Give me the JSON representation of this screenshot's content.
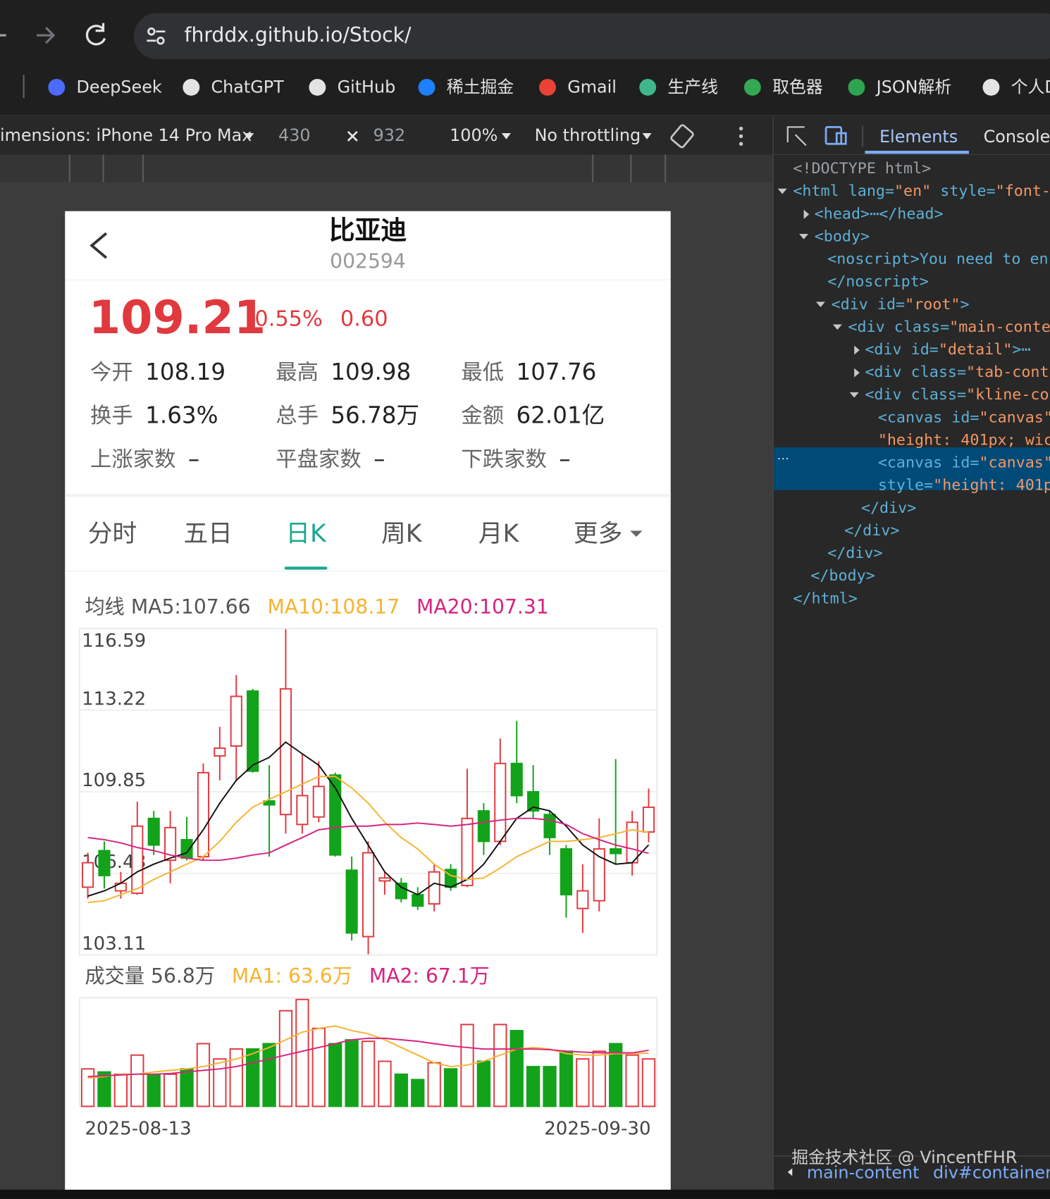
{
  "browser": {
    "url": "fhrddx.github.io/Stock/",
    "bookmarks": [
      "DeepSeek",
      "ChatGPT",
      "GitHub",
      "稀土掘金",
      "Gmail",
      "生产线",
      "取色器",
      "JSON解析",
      "个人D"
    ]
  },
  "device_toolbar": {
    "device": "imensions: iPhone 14 Pro Max",
    "width": 430,
    "height": 932,
    "zoom": "100%",
    "throttling": "No throttling"
  },
  "devtools": {
    "tabs": [
      "Elements",
      "Console"
    ],
    "dom": [
      "<!DOCTYPE html>",
      "<html lang=\"en\" style=\"font-",
      "<head>⋯</head>",
      "<body>",
      "<noscript>You need to en",
      "</noscript>",
      "<div id=\"root\">",
      "<div class=\"main-conte",
      "<div id=\"detail\">⋯",
      "<div class=\"tab-cont",
      "<div class=\"kline-co",
      "<canvas id=\"canvas\"",
      "\"height: 401px; wic",
      "<canvas id=\"canvas\"",
      "style=\"height: 401p",
      "</div>",
      "</div>",
      "</div>",
      "</body>",
      "</html>"
    ],
    "watermark": "掘金技术社区 @ VincentFHR",
    "breadcrumbs": [
      "main-content",
      "div#container.l"
    ]
  },
  "stock": {
    "name": "比亚迪",
    "code": "002594",
    "price": "109.21",
    "change_pct": "0.55%",
    "change": "0.60",
    "stats": [
      {
        "label": "今开",
        "value": "108.19"
      },
      {
        "label": "最高",
        "value": "109.98"
      },
      {
        "label": "最低",
        "value": "107.76"
      },
      {
        "label": "换手",
        "value": "1.63%"
      },
      {
        "label": "总手",
        "value": "56.78万"
      },
      {
        "label": "金额",
        "value": "62.01亿"
      },
      {
        "label": "上涨家数",
        "value": "–"
      },
      {
        "label": "平盘家数",
        "value": "–"
      },
      {
        "label": "下跌家数",
        "value": "–"
      }
    ],
    "tabs": [
      "分时",
      "五日",
      "日K",
      "周K",
      "月K",
      "更多"
    ],
    "active_tab": 2
  },
  "chart_data": [
    {
      "type": "candlestick",
      "categories": [
        "2025-08-13",
        null,
        null,
        null,
        null,
        null,
        null,
        null,
        null,
        null,
        null,
        null,
        null,
        null,
        null,
        null,
        null,
        null,
        null,
        null,
        null,
        null,
        null,
        null,
        null,
        null,
        null,
        null,
        null,
        null,
        null,
        null,
        null,
        null,
        "2025-09-30"
      ],
      "up_color": "#e0393e",
      "down_color": "#12a31b",
      "series": {
        "open": [
          105.91,
          107.42,
          105.76,
          105.66,
          108.75,
          107.02,
          107.87,
          107.17,
          111.33,
          111.74,
          114.01,
          109.47,
          108.91,
          108.5,
          108.81,
          110.54,
          106.61,
          103.87,
          106.17,
          106.07,
          105.6,
          105.22,
          106.64,
          105.98,
          109.06,
          107.8,
          111.02,
          109.85,
          108.91,
          107.49,
          105.03,
          105.35,
          107.49,
          106.92,
          108.19
        ],
        "high": [
          107.33,
          107.8,
          106.54,
          109.44,
          109.06,
          109.06,
          108.81,
          111.02,
          112.53,
          114.67,
          114.1,
          110.95,
          116.56,
          111.42,
          111.11,
          110.64,
          107.17,
          107.8,
          106.54,
          106.29,
          105.91,
          106.86,
          106.86,
          110.8,
          109.38,
          112.05,
          112.78,
          110.95,
          109.06,
          107.65,
          106.86,
          108.75,
          111.2,
          109.06,
          109.98
        ],
        "low": [
          105.44,
          105.85,
          105.44,
          105.6,
          107.24,
          106.07,
          107.02,
          107.02,
          110.32,
          110.32,
          110.64,
          107.17,
          108.12,
          108.12,
          108.59,
          107.17,
          103.71,
          103.14,
          105.6,
          105.28,
          104.97,
          104.91,
          105.76,
          105.91,
          107.24,
          107.65,
          109.38,
          108.75,
          107.24,
          104.65,
          104.02,
          104.91,
          106.86,
          106.39,
          107.76
        ],
        "close": [
          106.92,
          106.39,
          106.07,
          108.43,
          107.65,
          108.37,
          107.11,
          110.64,
          111.65,
          113.79,
          110.7,
          109.31,
          114.1,
          109.69,
          110.07,
          107.24,
          104.02,
          107.33,
          106.29,
          105.44,
          105.13,
          106.54,
          105.91,
          108.75,
          107.8,
          111.02,
          109.69,
          109.06,
          107.96,
          105.6,
          105.76,
          107.49,
          107.3,
          108.59,
          109.21
        ]
      },
      "lines": [
        {
          "label": "均线 MA5:107.66",
          "color": "#555555",
          "line_color": "#111111",
          "values": [
            105.54,
            105.76,
            106.07,
            106.54,
            106.86,
            107.11,
            107.33,
            108.28,
            109.38,
            110.32,
            110.95,
            111.27,
            111.9,
            111.42,
            110.95,
            110.01,
            108.75,
            107.65,
            106.54,
            105.91,
            105.6,
            106.07,
            105.91,
            106.23,
            106.86,
            107.8,
            108.75,
            109.22,
            109.06,
            108.43,
            107.65,
            107.17,
            106.86,
            106.92,
            107.66
          ]
        },
        {
          "label": "MA10:108.17",
          "color": "#f5b431",
          "line_color": "#f5b431",
          "values": [
            105.28,
            105.35,
            105.6,
            105.85,
            106.23,
            106.54,
            106.86,
            107.17,
            107.8,
            108.59,
            109.22,
            109.54,
            109.85,
            110.17,
            110.48,
            110.48,
            110.01,
            109.38,
            108.59,
            107.96,
            107.49,
            106.86,
            106.39,
            106.23,
            106.29,
            106.7,
            107.17,
            107.49,
            107.8,
            107.8,
            107.87,
            107.96,
            108.12,
            108.28,
            108.17
          ]
        },
        {
          "label": "MA20:107.31",
          "color": "#d6247f",
          "line_color": "#d6247f",
          "values": [
            107.96,
            107.87,
            107.74,
            107.55,
            107.42,
            107.24,
            107.11,
            107.02,
            107.02,
            107.11,
            107.24,
            107.33,
            107.65,
            107.96,
            108.28,
            108.37,
            108.43,
            108.43,
            108.5,
            108.5,
            108.56,
            108.5,
            108.43,
            108.5,
            108.59,
            108.68,
            108.75,
            108.75,
            108.68,
            108.5,
            108.12,
            107.87,
            107.65,
            107.49,
            107.31
          ]
        }
      ],
      "ylim": [
        103.11,
        116.59
      ],
      "yticks": [
        103.11,
        106.48,
        109.85,
        113.22,
        116.59
      ],
      "grid": true
    },
    {
      "type": "bar",
      "values": [
        44.9,
        41.2,
        38.5,
        61.4,
        38.5,
        38.5,
        44.9,
        75.1,
        56.8,
        68.7,
        68.7,
        75.1,
        114.5,
        128.0,
        93.4,
        75.1,
        79.7,
        77.9,
        54.0,
        38.5,
        32.1,
        52.2,
        44.9,
        98.0,
        54.0,
        98.0,
        90.7,
        47.6,
        47.6,
        66.0,
        56.8,
        66.0,
        75.1,
        61.4,
        56.8
      ],
      "ylim": [
        0,
        130
      ],
      "title": "成交量 56.8万",
      "title_color": "#555555",
      "lines": [
        {
          "label": "MA1: 63.6万",
          "color": "#f5b431",
          "line_color": "#f5b431",
          "values": [
            33.9,
            35.7,
            38.5,
            38.5,
            41.2,
            43.1,
            44.9,
            47.6,
            52.2,
            56.8,
            63.2,
            70.5,
            79.7,
            88.9,
            93.4,
            96.2,
            90.7,
            87.0,
            79.7,
            70.5,
            61.4,
            52.2,
            47.6,
            49.5,
            54.0,
            61.4,
            68.7,
            70.5,
            68.7,
            63.2,
            61.4,
            61.4,
            63.2,
            63.2,
            63.6
          ]
        },
        {
          "label": "MA2: 67.1万",
          "color": "#d6247f",
          "line_color": "#d6247f",
          "values": [
            35.7,
            36.6,
            37.6,
            38.5,
            38.5,
            39.4,
            41.2,
            43.1,
            44.9,
            47.6,
            52.2,
            56.8,
            61.4,
            66.0,
            70.5,
            75.1,
            79.7,
            81.5,
            81.5,
            79.7,
            77.9,
            75.1,
            72.4,
            70.5,
            68.7,
            68.7,
            68.7,
            68.7,
            67.8,
            66.0,
            65.0,
            64.1,
            64.1,
            64.1,
            67.1
          ]
        }
      ]
    }
  ]
}
